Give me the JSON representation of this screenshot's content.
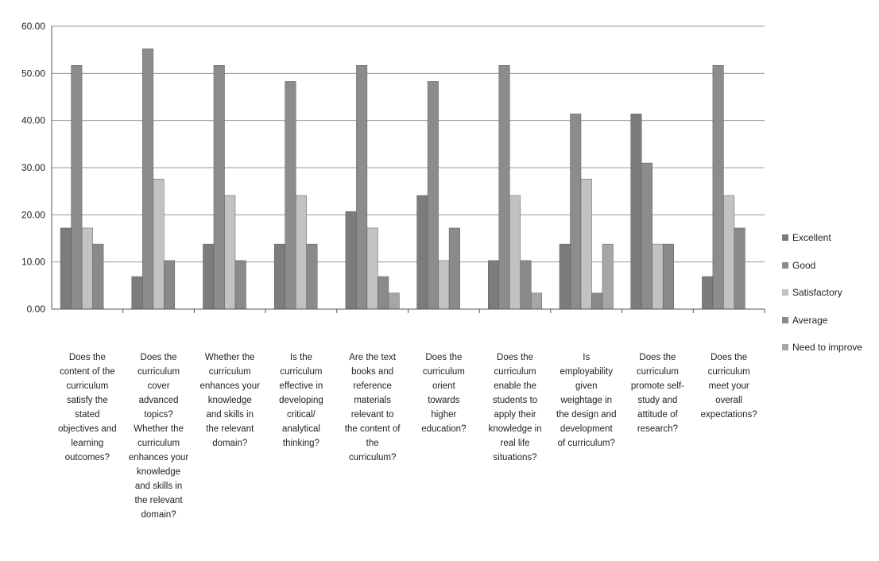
{
  "chart_data": {
    "type": "bar",
    "title": "",
    "xlabel": "",
    "ylabel": "",
    "ylim": [
      0,
      60
    ],
    "yticks": [
      "0.00",
      "10.00",
      "20.00",
      "30.00",
      "40.00",
      "50.00",
      "60.00"
    ],
    "grid": true,
    "legend_position": "right",
    "categories": [
      "Does the content of the curriculum satisfy the stated objectives and learning outcomes?",
      "Does the curriculum cover advanced topics? Whether the curriculum enhances your knowledge and skills in the relevant domain?",
      "Whether the curriculum enhances your knowledge and skills in the relevant domain?",
      "Is the curriculum effective in developing critical/ analytical thinking?",
      "Are the text books and reference materials relevant to the content of the curriculum?",
      "Does the curriculum orient towards higher education?",
      "Does the curriculum enable the students to apply their knowledge in real life situations?",
      "Is employability given weightage in the design and development of curriculum?",
      "Does the curriculum promote self-study and attitude of research?",
      "Does the curriculum meet your overall expectations?"
    ],
    "category_lines": [
      "Does the\ncontent of the\ncurriculum\nsatisfy the\nstated\nobjectives and\nlearning\noutcomes?",
      "Does the\ncurriculum\ncover\nadvanced\ntopics?\nWhether the\ncurriculum\nenhances your\nknowledge\nand skills in\nthe relevant\ndomain?",
      "Whether the\ncurriculum\nenhances your\nknowledge\nand skills in\nthe relevant\ndomain?",
      "Is the\ncurriculum\neffective in\ndeveloping\ncritical/\nanalytical\nthinking?",
      "Are the text\nbooks and\nreference\nmaterials\nrelevant to\nthe content of\nthe\ncurriculum?",
      "Does the\ncurriculum\norient\ntowards\nhigher\neducation?",
      "Does the\ncurriculum\nenable the\nstudents to\napply their\nknowledge in\nreal life\nsituations?",
      "Is\nemployability\ngiven\nweightage in\nthe design and\ndevelopment\nof curriculum?",
      "Does the\ncurriculum\npromote self-\nstudy and\nattitude of\nresearch?",
      "Does the\ncurriculum\nmeet your\noverall\nexpectations?"
    ],
    "series": [
      {
        "name": "Excellent",
        "color": "#7c7c7c",
        "values": [
          17.2,
          6.9,
          13.8,
          13.8,
          20.7,
          24.1,
          10.3,
          13.8,
          41.4,
          6.9
        ]
      },
      {
        "name": "Good",
        "color": "#8c8c8c",
        "values": [
          51.7,
          55.2,
          51.7,
          48.3,
          51.7,
          48.3,
          51.7,
          41.4,
          31.0,
          51.7
        ]
      },
      {
        "name": "Satisfactory",
        "color": "#c2c2c2",
        "values": [
          17.2,
          27.6,
          24.1,
          24.1,
          17.2,
          10.3,
          24.1,
          27.6,
          13.8,
          24.1
        ]
      },
      {
        "name": "Average",
        "color": "#8a8a8a",
        "values": [
          13.8,
          10.3,
          10.3,
          13.8,
          6.9,
          17.2,
          10.3,
          3.4,
          13.8,
          17.2
        ]
      },
      {
        "name": "Need to improve",
        "color": "#a6a6a6",
        "values": [
          0,
          0,
          0,
          0,
          3.4,
          0,
          3.4,
          13.8,
          0,
          0
        ]
      }
    ]
  }
}
